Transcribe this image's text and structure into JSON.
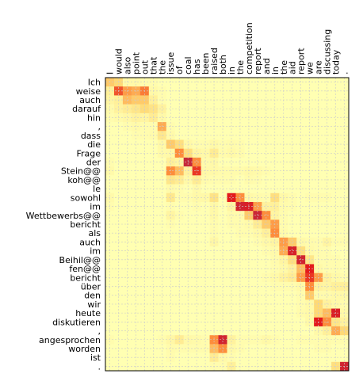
{
  "chart_data": {
    "type": "heatmap",
    "title": "",
    "xlabel": "",
    "ylabel": "",
    "x_labels": [
      "I",
      "would",
      "also",
      "point",
      "out",
      "that",
      "the",
      "issue",
      "of",
      "coal",
      "has",
      "been",
      "raised",
      "both",
      "in",
      "the",
      "competition",
      "report",
      "and",
      "in",
      "the",
      "aid",
      "report",
      "we",
      "are",
      "discussing",
      "today",
      "."
    ],
    "y_labels": [
      "Ich",
      "weise",
      "auch",
      "darauf",
      "hin",
      ",",
      "dass",
      "die",
      "Frage",
      "der",
      "Stein@@",
      "koh@@",
      "le",
      "sowohl",
      "im",
      "Wettbewerbs@@",
      "bericht",
      "als",
      "auch",
      "im",
      "Beihil@@",
      "fen@@",
      "bericht",
      "über",
      "den",
      "wir",
      "heute",
      "diskutieren",
      ",",
      "angesprochen",
      "worden",
      "ist",
      "."
    ],
    "value_range": [
      0,
      1
    ],
    "grid": true,
    "colors": {
      "low": "#ffffb2",
      "mid_low": "#fed976",
      "mid": "#fd8d3c",
      "high": "#e31a1c",
      "max": "#b3334d",
      "grid": "#cccccc"
    },
    "values": [
      [
        0.35,
        0.3,
        0.05,
        0.05,
        0.02,
        0.02,
        0,
        0,
        0,
        0,
        0,
        0,
        0,
        0,
        0,
        0,
        0,
        0,
        0,
        0,
        0,
        0,
        0,
        0,
        0,
        0,
        0,
        0
      ],
      [
        0.12,
        0.65,
        0.5,
        0.45,
        0.58,
        0.05,
        0.02,
        0,
        0,
        0,
        0,
        0,
        0,
        0,
        0,
        0,
        0,
        0,
        0,
        0,
        0,
        0,
        0,
        0,
        0,
        0,
        0,
        0
      ],
      [
        0.08,
        0.12,
        0.4,
        0.35,
        0.35,
        0.12,
        0.02,
        0,
        0,
        0,
        0,
        0,
        0,
        0,
        0,
        0,
        0,
        0,
        0,
        0,
        0,
        0,
        0,
        0,
        0,
        0,
        0,
        0
      ],
      [
        0.04,
        0.1,
        0.15,
        0.2,
        0.28,
        0.22,
        0.1,
        0,
        0,
        0,
        0,
        0,
        0,
        0,
        0,
        0,
        0,
        0,
        0,
        0,
        0,
        0,
        0,
        0,
        0,
        0,
        0,
        0
      ],
      [
        0.02,
        0.04,
        0.06,
        0.1,
        0.08,
        0.15,
        0.05,
        0,
        0,
        0,
        0,
        0,
        0,
        0,
        0,
        0,
        0,
        0,
        0,
        0,
        0,
        0,
        0,
        0,
        0,
        0,
        0,
        0
      ],
      [
        0,
        0,
        0.02,
        0.04,
        0.02,
        0.02,
        0.45,
        0.02,
        0,
        0,
        0,
        0,
        0,
        0,
        0,
        0,
        0,
        0,
        0,
        0,
        0,
        0,
        0,
        0,
        0,
        0,
        0,
        0
      ],
      [
        0,
        0,
        0,
        0.02,
        0.02,
        0.03,
        0.18,
        0.04,
        0,
        0,
        0,
        0,
        0,
        0,
        0,
        0,
        0,
        0,
        0,
        0,
        0,
        0,
        0,
        0,
        0,
        0,
        0,
        0
      ],
      [
        0,
        0,
        0,
        0,
        0,
        0,
        0.05,
        0.35,
        0.25,
        0.05,
        0.02,
        0.02,
        0.05,
        0.02,
        0.03,
        0.02,
        0,
        0,
        0,
        0,
        0,
        0,
        0,
        0,
        0,
        0,
        0,
        0
      ],
      [
        0,
        0,
        0,
        0,
        0,
        0,
        0.04,
        0.05,
        0.55,
        0.25,
        0.08,
        0.05,
        0.15,
        0.03,
        0.05,
        0.03,
        0,
        0,
        0,
        0,
        0,
        0,
        0,
        0,
        0,
        0,
        0,
        0
      ],
      [
        0.02,
        0,
        0,
        0,
        0,
        0,
        0,
        0.12,
        0.08,
        0.9,
        0.55,
        0.03,
        0.05,
        0,
        0,
        0,
        0,
        0,
        0,
        0,
        0,
        0,
        0,
        0,
        0,
        0,
        0,
        0
      ],
      [
        0.04,
        0,
        0,
        0,
        0,
        0,
        0,
        0.55,
        0.4,
        0.1,
        0.7,
        0.05,
        0.05,
        0.03,
        0.03,
        0.03,
        0.05,
        0.04,
        0.02,
        0,
        0,
        0,
        0,
        0,
        0,
        0,
        0,
        0
      ],
      [
        0,
        0,
        0,
        0,
        0,
        0,
        0,
        0.2,
        0.15,
        0.05,
        0.15,
        0.03,
        0.02,
        0.02,
        0.02,
        0,
        0.03,
        0.02,
        0,
        0,
        0,
        0,
        0,
        0,
        0,
        0,
        0,
        0
      ],
      [
        0,
        0,
        0,
        0,
        0,
        0,
        0,
        0.04,
        0.02,
        0,
        0.04,
        0,
        0,
        0,
        0,
        0,
        0,
        0,
        0,
        0,
        0,
        0,
        0,
        0,
        0,
        0,
        0,
        0
      ],
      [
        0.04,
        0,
        0,
        0,
        0,
        0,
        0,
        0.18,
        0.02,
        0.02,
        0.05,
        0.05,
        0.22,
        0,
        0.75,
        0.55,
        0.05,
        0.03,
        0.02,
        0.25,
        0.05,
        0.02,
        0,
        0.02,
        0.02,
        0.02,
        0,
        0
      ],
      [
        0.02,
        0,
        0,
        0,
        0,
        0,
        0,
        0.02,
        0,
        0,
        0.02,
        0,
        0.05,
        0,
        0.08,
        0.85,
        0.8,
        0.5,
        0.1,
        0.12,
        0.03,
        0.02,
        0,
        0,
        0,
        0,
        0,
        0
      ],
      [
        0,
        0,
        0,
        0,
        0,
        0,
        0,
        0.08,
        0.02,
        0,
        0,
        0,
        0.05,
        0,
        0.03,
        0.03,
        0.35,
        0.88,
        0.55,
        0.08,
        0.02,
        0,
        0,
        0,
        0,
        0,
        0,
        0
      ],
      [
        0,
        0,
        0,
        0,
        0,
        0,
        0,
        0.02,
        0,
        0,
        0,
        0,
        0.02,
        0,
        0.02,
        0.02,
        0.04,
        0.15,
        0.35,
        0.5,
        0.02,
        0,
        0,
        0,
        0,
        0,
        0,
        0
      ],
      [
        0,
        0,
        0,
        0,
        0,
        0,
        0,
        0,
        0,
        0,
        0,
        0,
        0.02,
        0,
        0,
        0.02,
        0.02,
        0.05,
        0.12,
        0.55,
        0.03,
        0,
        0,
        0,
        0,
        0,
        0,
        0
      ],
      [
        0,
        0,
        0,
        0,
        0,
        0,
        0,
        0,
        0,
        0,
        0,
        0,
        0.06,
        0,
        0,
        0,
        0,
        0.02,
        0.05,
        0.08,
        0.5,
        0.35,
        0.05,
        0.03,
        0.02,
        0.08,
        0.02,
        0.02
      ],
      [
        0,
        0,
        0,
        0,
        0,
        0,
        0,
        0,
        0,
        0,
        0,
        0,
        0,
        0,
        0,
        0,
        0,
        0,
        0.02,
        0.04,
        0.45,
        0.82,
        0.25,
        0.04,
        0.02,
        0.02,
        0,
        0
      ],
      [
        0,
        0,
        0,
        0,
        0,
        0,
        0,
        0,
        0,
        0,
        0,
        0,
        0,
        0,
        0,
        0,
        0,
        0,
        0,
        0.03,
        0.08,
        0.25,
        0.85,
        0.2,
        0.02,
        0.02,
        0.02,
        0
      ],
      [
        0,
        0,
        0,
        0,
        0,
        0,
        0,
        0,
        0,
        0,
        0,
        0,
        0,
        0,
        0,
        0,
        0,
        0,
        0,
        0.02,
        0.05,
        0.1,
        0.4,
        0.75,
        0.05,
        0.02,
        0.02,
        0
      ],
      [
        0,
        0,
        0,
        0,
        0,
        0,
        0,
        0,
        0,
        0,
        0,
        0,
        0,
        0,
        0,
        0,
        0,
        0,
        0.02,
        0.05,
        0.1,
        0.15,
        0.5,
        0.7,
        0.5,
        0.1,
        0.05,
        0.02
      ],
      [
        0,
        0,
        0,
        0,
        0,
        0,
        0,
        0,
        0,
        0,
        0,
        0,
        0,
        0,
        0,
        0,
        0,
        0,
        0,
        0.02,
        0.02,
        0.02,
        0.05,
        0.55,
        0.1,
        0.08,
        0.12,
        0.12
      ],
      [
        0,
        0,
        0,
        0,
        0,
        0,
        0,
        0,
        0,
        0,
        0,
        0,
        0,
        0,
        0,
        0,
        0,
        0,
        0,
        0,
        0,
        0,
        0.02,
        0.35,
        0.03,
        0.03,
        0.05,
        0.05
      ],
      [
        0,
        0,
        0,
        0,
        0,
        0,
        0,
        0,
        0,
        0,
        0,
        0,
        0,
        0,
        0,
        0,
        0,
        0,
        0,
        0,
        0,
        0,
        0.02,
        0.05,
        0.3,
        0.1,
        0.05,
        0.02
      ],
      [
        0,
        0,
        0,
        0,
        0,
        0,
        0,
        0,
        0,
        0,
        0,
        0,
        0,
        0,
        0,
        0,
        0,
        0,
        0,
        0,
        0,
        0,
        0.03,
        0.05,
        0.3,
        0.4,
        0.8,
        0.05
      ],
      [
        0,
        0,
        0,
        0,
        0,
        0,
        0,
        0,
        0,
        0,
        0,
        0,
        0,
        0,
        0,
        0,
        0,
        0,
        0,
        0,
        0,
        0,
        0,
        0.05,
        0.75,
        0.55,
        0.2,
        0.1
      ],
      [
        0,
        0,
        0,
        0,
        0,
        0,
        0,
        0,
        0,
        0,
        0,
        0,
        0,
        0,
        0,
        0,
        0,
        0,
        0,
        0,
        0,
        0,
        0,
        0,
        0.05,
        0.12,
        0.45,
        0.3
      ],
      [
        0.02,
        0,
        0,
        0,
        0,
        0,
        0.02,
        0.06,
        0.15,
        0.05,
        0.04,
        0.02,
        0.55,
        0.85,
        0.1,
        0.02,
        0.02,
        0.02,
        0.05,
        0.02,
        0,
        0,
        0.02,
        0.02,
        0.02,
        0.03,
        0.02,
        0.02
      ],
      [
        0,
        0,
        0,
        0,
        0,
        0,
        0,
        0.03,
        0.02,
        0.02,
        0.02,
        0.02,
        0.4,
        0.55,
        0.05,
        0.02,
        0,
        0,
        0,
        0,
        0,
        0,
        0,
        0,
        0.02,
        0.02,
        0,
        0
      ],
      [
        0,
        0,
        0,
        0,
        0,
        0,
        0,
        0.02,
        0,
        0,
        0,
        0,
        0.15,
        0.05,
        0.02,
        0,
        0,
        0,
        0,
        0,
        0,
        0,
        0,
        0,
        0,
        0,
        0,
        0
      ],
      [
        0,
        0,
        0,
        0,
        0,
        0,
        0,
        0,
        0,
        0,
        0,
        0,
        0.02,
        0.02,
        0.12,
        0,
        0,
        0,
        0,
        0,
        0,
        0,
        0,
        0,
        0,
        0,
        0.25,
        0.85
      ]
    ]
  }
}
